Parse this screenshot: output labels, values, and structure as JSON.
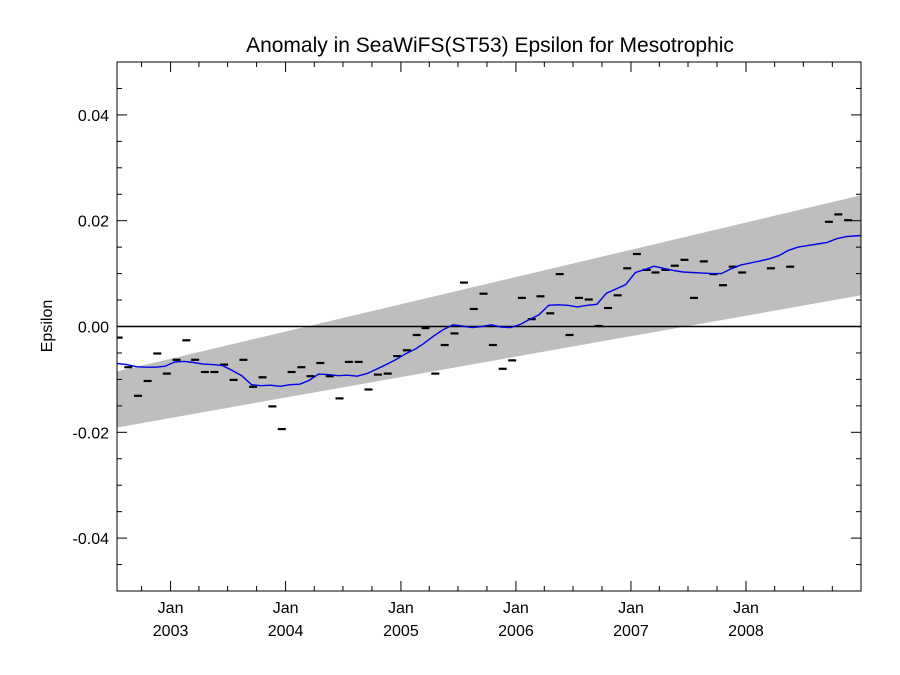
{
  "chart_data": {
    "type": "scatter",
    "title": "Anomaly in SeaWiFS(ST53) Epsilon for Mesotrophic",
    "xlabel": "",
    "ylabel": "Epsilon",
    "ylim": [
      -0.05,
      0.05
    ],
    "xlim": [
      "2002-07-15",
      "2008-12-31"
    ],
    "y_ticks": [
      {
        "value": 0.04,
        "label": "0.04"
      },
      {
        "value": 0.02,
        "label": "0.02"
      },
      {
        "value": 0.0,
        "label": "0.00"
      },
      {
        "value": -0.02,
        "label": "-0.02"
      },
      {
        "value": -0.04,
        "label": "-0.04"
      }
    ],
    "x_ticks": [
      {
        "date": "2003-01-01",
        "month": "Jan",
        "year": "2003"
      },
      {
        "date": "2004-01-01",
        "month": "Jan",
        "year": "2004"
      },
      {
        "date": "2005-01-01",
        "month": "Jan",
        "year": "2005"
      },
      {
        "date": "2006-01-01",
        "month": "Jan",
        "year": "2006"
      },
      {
        "date": "2007-01-01",
        "month": "Jan",
        "year": "2007"
      },
      {
        "date": "2008-01-01",
        "month": "Jan",
        "year": "2008"
      }
    ],
    "reference_line": {
      "y": 0.0,
      "color": "#000000"
    },
    "band": {
      "color": "#bebebe",
      "start": {
        "date": "2002-07-15",
        "lower": -0.0191,
        "upper": -0.0085
      },
      "end": {
        "date": "2008-12-31",
        "lower": 0.0059,
        "upper": 0.0248
      }
    },
    "series": [
      {
        "kind": "points",
        "color": "#000000",
        "points": [
          [
            "2002-07-20",
            -0.0021
          ],
          [
            "2002-08-20",
            -0.0077
          ],
          [
            "2002-09-20",
            -0.0131
          ],
          [
            "2002-10-20",
            -0.0103
          ],
          [
            "2002-11-20",
            -0.0051
          ],
          [
            "2002-12-20",
            -0.0089
          ],
          [
            "2003-01-20",
            -0.0063
          ],
          [
            "2003-02-20",
            -0.0026
          ],
          [
            "2003-03-20",
            -0.0063
          ],
          [
            "2003-04-20",
            -0.0086
          ],
          [
            "2003-05-20",
            -0.0086
          ],
          [
            "2003-06-20",
            -0.0072
          ],
          [
            "2003-07-20",
            -0.0101
          ],
          [
            "2003-08-20",
            -0.0063
          ],
          [
            "2003-09-20",
            -0.0114
          ],
          [
            "2003-10-20",
            -0.0096
          ],
          [
            "2003-11-20",
            -0.0151
          ],
          [
            "2003-12-20",
            -0.0194
          ],
          [
            "2004-01-20",
            -0.0086
          ],
          [
            "2004-02-20",
            -0.0077
          ],
          [
            "2004-03-20",
            -0.0094
          ],
          [
            "2004-04-20",
            -0.0069
          ],
          [
            "2004-05-20",
            -0.0094
          ],
          [
            "2004-06-20",
            -0.0136
          ],
          [
            "2004-07-20",
            -0.0067
          ],
          [
            "2004-08-20",
            -0.0067
          ],
          [
            "2004-09-20",
            -0.0119
          ],
          [
            "2004-10-20",
            -0.0091
          ],
          [
            "2004-11-20",
            -0.0089
          ],
          [
            "2004-12-20",
            -0.0056
          ],
          [
            "2005-01-20",
            -0.0045
          ],
          [
            "2005-02-20",
            -0.0016
          ],
          [
            "2005-03-20",
            -0.0003
          ],
          [
            "2005-04-20",
            -0.0089
          ],
          [
            "2005-05-20",
            -0.0035
          ],
          [
            "2005-06-20",
            -0.0013
          ],
          [
            "2005-07-20",
            0.0083
          ],
          [
            "2005-08-20",
            0.0033
          ],
          [
            "2005-09-20",
            0.0062
          ],
          [
            "2005-10-20",
            -0.0035
          ],
          [
            "2005-11-20",
            -0.008
          ],
          [
            "2005-12-20",
            -0.0064
          ],
          [
            "2006-01-20",
            0.0054
          ],
          [
            "2006-02-20",
            0.0014
          ],
          [
            "2006-03-20",
            0.0057
          ],
          [
            "2006-04-20",
            0.0025
          ],
          [
            "2006-05-20",
            0.0099
          ],
          [
            "2006-06-20",
            -0.0016
          ],
          [
            "2006-07-20",
            0.0054
          ],
          [
            "2006-08-20",
            0.0051
          ],
          [
            "2006-09-20",
            0.0001
          ],
          [
            "2006-10-20",
            0.0035
          ],
          [
            "2006-11-20",
            0.0059
          ],
          [
            "2006-12-20",
            0.011
          ],
          [
            "2007-01-20",
            0.0137
          ],
          [
            "2007-02-20",
            0.0107
          ],
          [
            "2007-03-20",
            0.0102
          ],
          [
            "2007-04-20",
            0.0107
          ],
          [
            "2007-05-20",
            0.0115
          ],
          [
            "2007-06-20",
            0.0126
          ],
          [
            "2007-07-20",
            0.0054
          ],
          [
            "2007-08-20",
            0.0123
          ],
          [
            "2007-09-20",
            0.0099
          ],
          [
            "2007-10-20",
            0.0078
          ],
          [
            "2007-11-20",
            0.0113
          ],
          [
            "2007-12-20",
            0.0102
          ],
          [
            "2008-03-20",
            0.011
          ],
          [
            "2008-05-20",
            0.0113
          ],
          [
            "2008-09-20",
            0.0198
          ],
          [
            "2008-10-20",
            0.0212
          ],
          [
            "2008-11-20",
            0.0201
          ]
        ]
      },
      {
        "kind": "line",
        "color": "#0000e6",
        "points": [
          [
            "2002-07-15",
            -0.007
          ],
          [
            "2002-08-15",
            -0.0072
          ],
          [
            "2002-09-15",
            -0.0076
          ],
          [
            "2002-10-15",
            -0.0077
          ],
          [
            "2002-11-15",
            -0.0077
          ],
          [
            "2002-12-15",
            -0.0075
          ],
          [
            "2003-01-15",
            -0.0067
          ],
          [
            "2003-02-15",
            -0.0066
          ],
          [
            "2003-03-15",
            -0.0068
          ],
          [
            "2003-04-15",
            -0.0071
          ],
          [
            "2003-05-15",
            -0.0072
          ],
          [
            "2003-06-15",
            -0.0074
          ],
          [
            "2003-07-15",
            -0.0083
          ],
          [
            "2003-08-15",
            -0.0093
          ],
          [
            "2003-09-15",
            -0.011
          ],
          [
            "2003-10-15",
            -0.0112
          ],
          [
            "2003-11-15",
            -0.0111
          ],
          [
            "2003-12-15",
            -0.0113
          ],
          [
            "2004-01-15",
            -0.011
          ],
          [
            "2004-02-15",
            -0.0109
          ],
          [
            "2004-03-15",
            -0.0102
          ],
          [
            "2004-04-15",
            -0.009
          ],
          [
            "2004-05-15",
            -0.0091
          ],
          [
            "2004-06-15",
            -0.0093
          ],
          [
            "2004-07-15",
            -0.0092
          ],
          [
            "2004-08-15",
            -0.0094
          ],
          [
            "2004-09-15",
            -0.0089
          ],
          [
            "2004-10-15",
            -0.0081
          ],
          [
            "2004-11-15",
            -0.0072
          ],
          [
            "2004-12-15",
            -0.0063
          ],
          [
            "2005-01-15",
            -0.0052
          ],
          [
            "2005-02-15",
            -0.0043
          ],
          [
            "2005-03-15",
            -0.0032
          ],
          [
            "2005-04-15",
            -0.0018
          ],
          [
            "2005-05-15",
            -0.0006
          ],
          [
            "2005-06-15",
            0.0003
          ],
          [
            "2005-07-15",
            0.0001
          ],
          [
            "2005-08-15",
            -0.0002
          ],
          [
            "2005-09-15",
            0.0
          ],
          [
            "2005-10-15",
            0.0003
          ],
          [
            "2005-11-15",
            -0.0001
          ],
          [
            "2005-12-15",
            -0.0002
          ],
          [
            "2006-01-15",
            0.0004
          ],
          [
            "2006-02-15",
            0.0014
          ],
          [
            "2006-03-15",
            0.0022
          ],
          [
            "2006-04-15",
            0.004
          ],
          [
            "2006-05-15",
            0.0041
          ],
          [
            "2006-06-15",
            0.004
          ],
          [
            "2006-07-15",
            0.0037
          ],
          [
            "2006-08-15",
            0.004
          ],
          [
            "2006-09-15",
            0.0042
          ],
          [
            "2006-10-15",
            0.0063
          ],
          [
            "2006-11-15",
            0.0071
          ],
          [
            "2006-12-15",
            0.0079
          ],
          [
            "2007-01-15",
            0.0102
          ],
          [
            "2007-02-15",
            0.0108
          ],
          [
            "2007-03-15",
            0.0114
          ],
          [
            "2007-04-15",
            0.011
          ],
          [
            "2007-05-15",
            0.0106
          ],
          [
            "2007-06-15",
            0.0103
          ],
          [
            "2007-07-15",
            0.0102
          ],
          [
            "2007-08-15",
            0.0101
          ],
          [
            "2007-09-15",
            0.01
          ],
          [
            "2007-10-15",
            0.01
          ],
          [
            "2007-11-15",
            0.0109
          ],
          [
            "2007-12-15",
            0.0116
          ],
          [
            "2008-01-15",
            0.012
          ],
          [
            "2008-02-15",
            0.0124
          ],
          [
            "2008-03-15",
            0.0128
          ],
          [
            "2008-04-15",
            0.0134
          ],
          [
            "2008-05-15",
            0.0144
          ],
          [
            "2008-06-15",
            0.015
          ],
          [
            "2008-07-15",
            0.0153
          ],
          [
            "2008-08-15",
            0.0156
          ],
          [
            "2008-09-15",
            0.0159
          ],
          [
            "2008-10-15",
            0.0166
          ],
          [
            "2008-11-15",
            0.017
          ],
          [
            "2008-12-31",
            0.0172
          ]
        ]
      }
    ],
    "grid": false,
    "legend": "none"
  }
}
